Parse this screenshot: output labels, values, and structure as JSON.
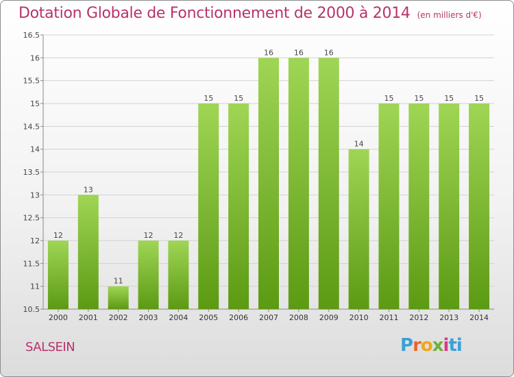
{
  "header": {
    "title": "Dotation Globale de Fonctionnement de 2000 à 2014",
    "subtitle": "(en milliers d'€)"
  },
  "footer": {
    "town": "SALSEIN",
    "logo": [
      "P",
      "r",
      "o",
      "x",
      "i",
      "ti"
    ]
  },
  "colors": {
    "bar_light": "#9fd655",
    "bar_dark": "#5c9a13",
    "title": "#b7336a"
  },
  "chart_data": {
    "type": "bar",
    "title": "Dotation Globale de Fonctionnement de 2000 à 2014",
    "subtitle": "(en milliers d'€)",
    "xlabel": "",
    "ylabel": "",
    "categories": [
      "2000",
      "2001",
      "2002",
      "2003",
      "2004",
      "2005",
      "2006",
      "2007",
      "2008",
      "2009",
      "2010",
      "2011",
      "2012",
      "2013",
      "2014"
    ],
    "values": [
      12,
      13,
      11,
      12,
      12,
      15,
      15,
      16,
      16,
      16,
      14,
      15,
      15,
      15,
      15
    ],
    "value_labels": [
      "12",
      "13",
      "11",
      "12",
      "12",
      "15",
      "15",
      "16",
      "16",
      "16",
      "14",
      "15",
      "15",
      "15",
      "15"
    ],
    "ylim": [
      10.5,
      16.5
    ],
    "yticks": [
      10.5,
      11,
      11.5,
      12,
      12.5,
      13,
      13.5,
      14,
      14.5,
      15,
      15.5,
      16,
      16.5
    ],
    "ytick_labels": [
      "10.5",
      "11",
      "11.5",
      "12",
      "12.5",
      "13",
      "13.5",
      "14",
      "14.5",
      "15",
      "15.5",
      "16",
      "16.5"
    ],
    "grid": true
  }
}
